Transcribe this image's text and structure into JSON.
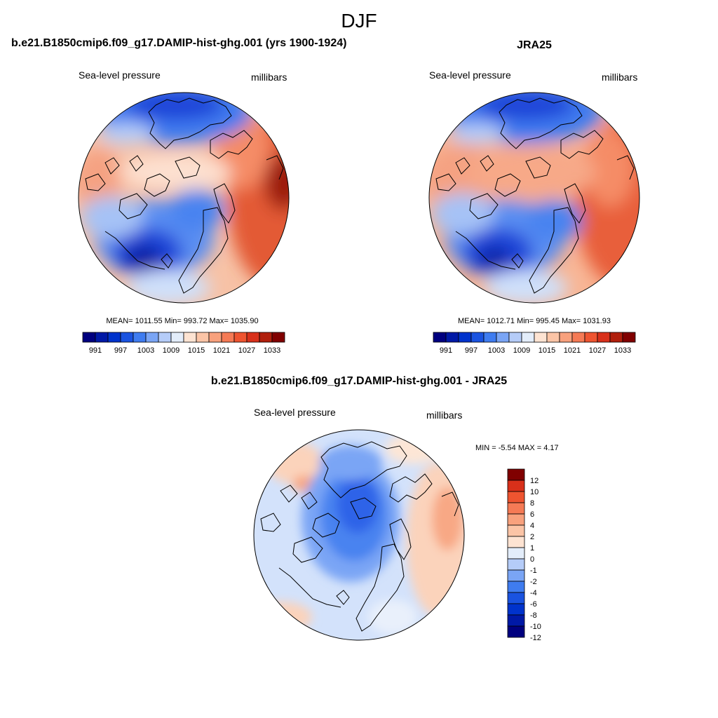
{
  "figure": {
    "title": "DJF"
  },
  "colors": {
    "abs_scale": [
      "#00007f",
      "#0019a6",
      "#0033cc",
      "#1a53e0",
      "#3f7cf0",
      "#7aa5f5",
      "#b5ccf8",
      "#e3edfa",
      "#fde3d2",
      "#fbc4a6",
      "#f8a17d",
      "#f57a55",
      "#ee5430",
      "#d8301a",
      "#b01f0c",
      "#800000"
    ],
    "diff_scale": [
      "#00007f",
      "#0019a6",
      "#0033cc",
      "#1a53e0",
      "#3f7cf0",
      "#7aa5f5",
      "#b5ccf8",
      "#e3edfa",
      "#fde3d2",
      "#fbc4a6",
      "#f8a17d",
      "#f57a55",
      "#ee5430",
      "#d8301a",
      "#800000"
    ]
  },
  "panels": [
    {
      "title": "b.e21.B1850cmip6.f09_g17.DAMIP-hist-ghg.001 (yrs 1900-1924)",
      "variable": "Sea-level pressure",
      "units": "millibars",
      "stats": "MEAN= 1011.55  Min= 993.72  Max= 1035.90",
      "colorbar_labels": [
        "991",
        "997",
        "1003",
        "1009",
        "1015",
        "1021",
        "1027",
        "1033"
      ]
    },
    {
      "title": "JRA25",
      "variable": "Sea-level pressure",
      "units": "millibars",
      "stats": "MEAN= 1012.71  Min= 995.45  Max= 1031.93",
      "colorbar_labels": [
        "991",
        "997",
        "1003",
        "1009",
        "1015",
        "1021",
        "1027",
        "1033"
      ]
    },
    {
      "title": "b.e21.B1850cmip6.f09_g17.DAMIP-hist-ghg.001 - JRA25",
      "variable": "Sea-level pressure",
      "units": "millibars",
      "stats": "MIN =  -5.54 MAX =   4.17",
      "colorbar_labels": [
        "12",
        "10",
        "8",
        "6",
        "4",
        "2",
        "1",
        "0",
        "-1",
        "-2",
        "-4",
        "-6",
        "-8",
        "-10",
        "-12"
      ]
    }
  ]
}
